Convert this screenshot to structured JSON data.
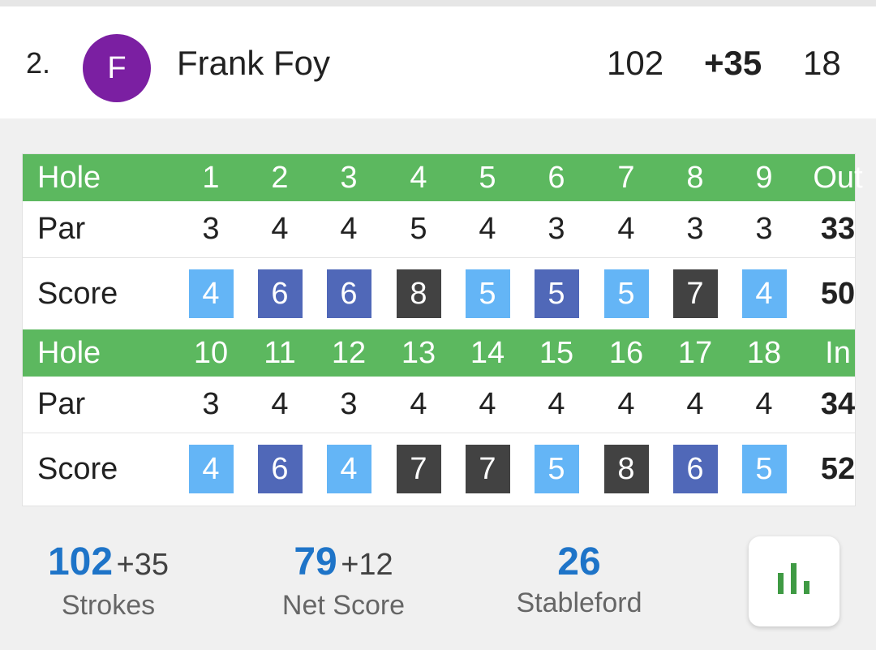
{
  "player": {
    "rank": "2.",
    "initial": "F",
    "name": "Frank Foy",
    "strokes": "102",
    "to_par": "+35",
    "thru": "18",
    "avatar_color": "#7b1fa2"
  },
  "scorecard": {
    "hole_label": "Hole",
    "par_label": "Par",
    "score_label": "Score",
    "front": {
      "total_label": "Out",
      "holes": [
        "1",
        "2",
        "3",
        "4",
        "5",
        "6",
        "7",
        "8",
        "9"
      ],
      "par": [
        "3",
        "4",
        "4",
        "5",
        "4",
        "3",
        "4",
        "3",
        "3"
      ],
      "score": [
        "4",
        "6",
        "6",
        "8",
        "5",
        "5",
        "5",
        "7",
        "4"
      ],
      "score_type": [
        "bogey",
        "double",
        "double",
        "triple",
        "bogey",
        "double",
        "bogey",
        "triple",
        "bogey"
      ],
      "par_total": "33",
      "score_total": "50"
    },
    "back": {
      "total_label": "In",
      "holes": [
        "10",
        "11",
        "12",
        "13",
        "14",
        "15",
        "16",
        "17",
        "18"
      ],
      "par": [
        "3",
        "4",
        "3",
        "4",
        "4",
        "4",
        "4",
        "4",
        "4"
      ],
      "score": [
        "4",
        "6",
        "4",
        "7",
        "7",
        "5",
        "8",
        "6",
        "5"
      ],
      "score_type": [
        "bogey",
        "double",
        "bogey",
        "triple",
        "triple",
        "bogey",
        "triple",
        "double",
        "bogey"
      ],
      "par_total": "34",
      "score_total": "52"
    },
    "colors": {
      "header_green": "#5cb85f",
      "bogey": "#64b5f6",
      "double_bogey": "#5068b8",
      "triple_bogey_plus": "#424242"
    }
  },
  "stats": {
    "strokes": {
      "value": "102",
      "sub": "+35",
      "label": "Strokes"
    },
    "net": {
      "value": "79",
      "sub": "+12",
      "label": "Net Score"
    },
    "stableford": {
      "value": "26",
      "label": "Stableford"
    }
  },
  "chart_button": {
    "icon": "bar-chart-icon",
    "color": "#3f9a44"
  }
}
